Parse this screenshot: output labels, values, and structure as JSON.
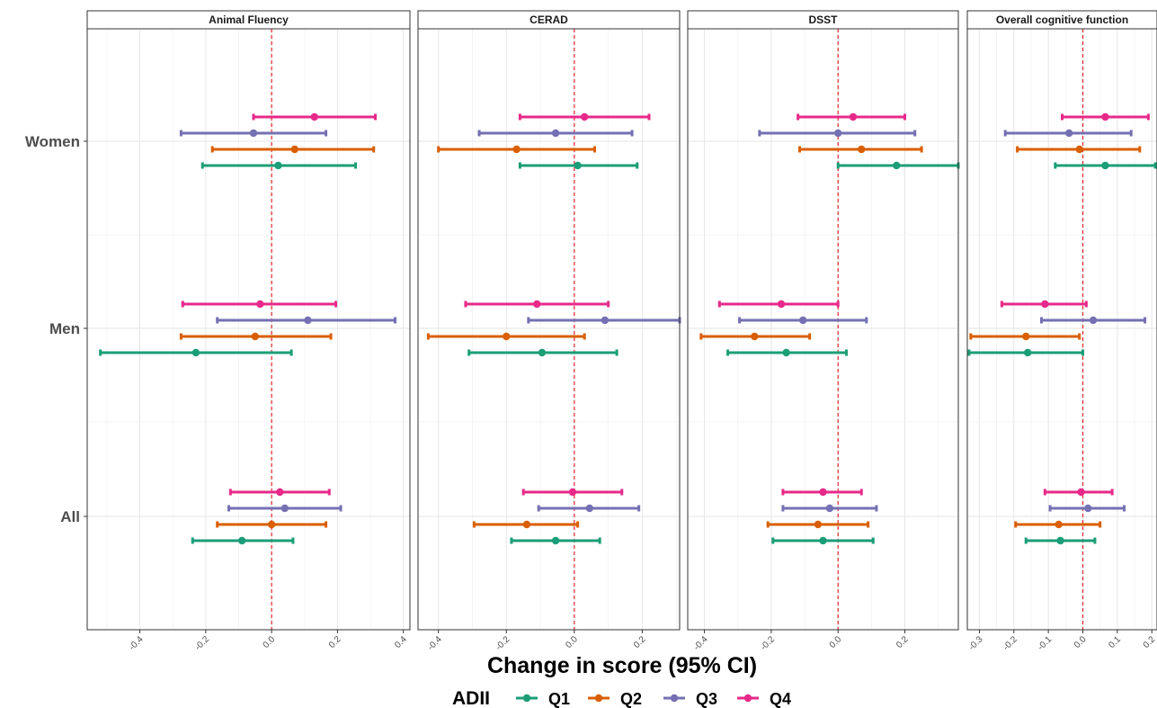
{
  "chart_data": {
    "type": "forest",
    "xlabel": "Change in score (95% CI)",
    "legend": {
      "title": "ADII",
      "placement": "bottom",
      "entries": [
        {
          "name": "Q1",
          "color": "#1b9e77"
        },
        {
          "name": "Q2",
          "color": "#d95f02"
        },
        {
          "name": "Q3",
          "color": "#7570b3"
        },
        {
          "name": "Q4",
          "color": "#e7298a"
        }
      ]
    },
    "groups": [
      "Women",
      "Men",
      "All"
    ],
    "reference_line": 0,
    "grid": true,
    "panels": [
      {
        "title": "Animal Fluency",
        "xlim": [
          -0.56,
          0.42
        ],
        "ticks": [
          -0.4,
          -0.2,
          0.0,
          0.2,
          0.4
        ],
        "tick_labels": [
          "-0.4",
          "-0.2",
          "0.0",
          "0.2",
          "0.4"
        ],
        "estimates": {
          "Women": {
            "Q1": [
              0.02,
              -0.21,
              0.255
            ],
            "Q2": [
              0.07,
              -0.18,
              0.31
            ],
            "Q3": [
              -0.055,
              -0.275,
              0.165
            ],
            "Q4": [
              0.13,
              -0.055,
              0.315
            ]
          },
          "Men": {
            "Q1": [
              -0.23,
              -0.52,
              0.06
            ],
            "Q2": [
              -0.05,
              -0.275,
              0.18
            ],
            "Q3": [
              0.11,
              -0.165,
              0.375
            ],
            "Q4": [
              -0.035,
              -0.27,
              0.195
            ]
          },
          "All": {
            "Q1": [
              -0.09,
              -0.24,
              0.065
            ],
            "Q2": [
              0.0,
              -0.165,
              0.165
            ],
            "Q3": [
              0.04,
              -0.13,
              0.21
            ],
            "Q4": [
              0.025,
              -0.125,
              0.175
            ]
          }
        }
      },
      {
        "title": "CERAD",
        "xlim": [
          -0.46,
          0.31
        ],
        "ticks": [
          -0.4,
          -0.2,
          0.0,
          0.2
        ],
        "tick_labels": [
          "-0.4",
          "-0.2",
          "0.0",
          "0.2"
        ],
        "estimates": {
          "Women": {
            "Q1": [
              0.01,
              -0.16,
              0.185
            ],
            "Q2": [
              -0.17,
              -0.4,
              0.06
            ],
            "Q3": [
              -0.055,
              -0.28,
              0.17
            ],
            "Q4": [
              0.03,
              -0.16,
              0.22
            ]
          },
          "Men": {
            "Q1": [
              -0.095,
              -0.31,
              0.125
            ],
            "Q2": [
              -0.2,
              -0.43,
              0.03
            ],
            "Q3": [
              0.09,
              -0.135,
              0.31
            ],
            "Q4": [
              -0.11,
              -0.32,
              0.1
            ]
          },
          "All": {
            "Q1": [
              -0.055,
              -0.185,
              0.075
            ],
            "Q2": [
              -0.14,
              -0.295,
              0.01
            ],
            "Q3": [
              0.045,
              -0.105,
              0.19
            ],
            "Q4": [
              -0.005,
              -0.15,
              0.14
            ]
          }
        }
      },
      {
        "title": "DSST",
        "xlim": [
          -0.45,
          0.36
        ],
        "ticks": [
          -0.4,
          -0.2,
          0.0,
          0.2
        ],
        "tick_labels": [
          "-0.4",
          "-0.2",
          "0.0",
          "0.2"
        ],
        "estimates": {
          "Women": {
            "Q1": [
              0.175,
              0.0,
              0.36
            ],
            "Q2": [
              0.07,
              -0.115,
              0.25
            ],
            "Q3": [
              0.0,
              -0.235,
              0.23
            ],
            "Q4": [
              0.045,
              -0.12,
              0.2
            ]
          },
          "Men": {
            "Q1": [
              -0.155,
              -0.33,
              0.025
            ],
            "Q2": [
              -0.25,
              -0.41,
              -0.085
            ],
            "Q3": [
              -0.105,
              -0.295,
              0.085
            ],
            "Q4": [
              -0.17,
              -0.355,
              0.0
            ]
          },
          "All": {
            "Q1": [
              -0.045,
              -0.195,
              0.105
            ],
            "Q2": [
              -0.06,
              -0.21,
              0.09
            ],
            "Q3": [
              -0.025,
              -0.165,
              0.115
            ],
            "Q4": [
              -0.045,
              -0.165,
              0.07
            ]
          }
        }
      },
      {
        "title": "Overall cognitive function",
        "xlim": [
          -0.335,
          0.215
        ],
        "ticks": [
          -0.3,
          -0.2,
          -0.1,
          0.0,
          0.1,
          0.2
        ],
        "tick_labels": [
          "-0.3",
          "-0.2",
          "-0.1",
          "0.0",
          "0.1",
          "0.2"
        ],
        "estimates": {
          "Women": {
            "Q1": [
              0.065,
              -0.08,
              0.21
            ],
            "Q2": [
              -0.01,
              -0.19,
              0.165
            ],
            "Q3": [
              -0.04,
              -0.225,
              0.14
            ],
            "Q4": [
              0.065,
              -0.06,
              0.19
            ]
          },
          "Men": {
            "Q1": [
              -0.16,
              -0.33,
              0.0
            ],
            "Q2": [
              -0.165,
              -0.325,
              -0.01
            ],
            "Q3": [
              0.03,
              -0.12,
              0.18
            ],
            "Q4": [
              -0.11,
              -0.235,
              0.01
            ]
          },
          "All": {
            "Q1": [
              -0.065,
              -0.165,
              0.035
            ],
            "Q2": [
              -0.07,
              -0.195,
              0.05
            ],
            "Q3": [
              0.015,
              -0.095,
              0.12
            ],
            "Q4": [
              -0.005,
              -0.11,
              0.085
            ]
          }
        }
      }
    ]
  }
}
